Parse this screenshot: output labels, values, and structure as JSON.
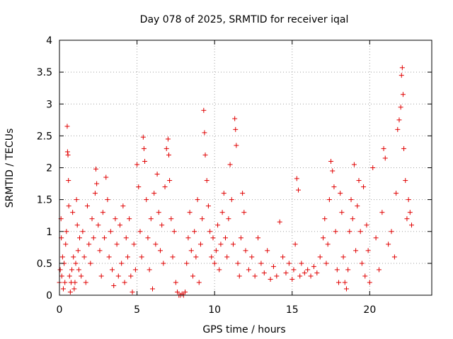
{
  "chart_data": {
    "type": "scatter",
    "title": "Day 078 of 2025, SRMTID for receiver iqal",
    "xlabel": "GPS time / hours",
    "ylabel": "SRMTID / TECUs",
    "xlim": [
      0,
      24
    ],
    "ylim": [
      0,
      4
    ],
    "xticks": [
      "0",
      "5",
      "10",
      "15",
      "20"
    ],
    "yticks": [
      "0",
      "0.5",
      "1",
      "1.5",
      "2",
      "2.5",
      "3",
      "3.5",
      "4"
    ],
    "grid": true,
    "marker": "+",
    "color": "#e00000",
    "series": [
      {
        "name": "SRMTID",
        "points": [
          [
            0.0,
            0.2
          ],
          [
            0.05,
            0.4
          ],
          [
            0.1,
            1.2
          ],
          [
            0.12,
            0.9
          ],
          [
            0.15,
            0.3
          ],
          [
            0.2,
            0.6
          ],
          [
            0.25,
            0.1
          ],
          [
            0.3,
            0.5
          ],
          [
            0.35,
            0.2
          ],
          [
            0.4,
            0.8
          ],
          [
            0.45,
            1.0
          ],
          [
            0.5,
            2.65
          ],
          [
            0.52,
            2.25
          ],
          [
            0.55,
            2.2
          ],
          [
            0.58,
            1.8
          ],
          [
            0.6,
            1.4
          ],
          [
            0.65,
            0.3
          ],
          [
            0.7,
            0.05
          ],
          [
            0.75,
            0.2
          ],
          [
            0.8,
            0.4
          ],
          [
            0.85,
            1.3
          ],
          [
            0.9,
            0.6
          ],
          [
            0.95,
            0.1
          ],
          [
            1.0,
            0.2
          ],
          [
            1.05,
            0.5
          ],
          [
            1.1,
            1.5
          ],
          [
            1.15,
            1.1
          ],
          [
            1.2,
            0.7
          ],
          [
            1.25,
            0.4
          ],
          [
            1.3,
            0.9
          ],
          [
            1.4,
            0.3
          ],
          [
            1.5,
            1.0
          ],
          [
            1.6,
            0.6
          ],
          [
            1.7,
            0.2
          ],
          [
            1.8,
            1.4
          ],
          [
            1.9,
            0.8
          ],
          [
            2.0,
            0.5
          ],
          [
            2.1,
            1.2
          ],
          [
            2.2,
            0.9
          ],
          [
            2.3,
            1.6
          ],
          [
            2.35,
            1.98
          ],
          [
            2.4,
            1.75
          ],
          [
            2.5,
            1.1
          ],
          [
            2.6,
            0.7
          ],
          [
            2.7,
            0.3
          ],
          [
            2.8,
            1.3
          ],
          [
            2.9,
            0.9
          ],
          [
            3.0,
            1.85
          ],
          [
            3.1,
            1.5
          ],
          [
            3.2,
            0.6
          ],
          [
            3.3,
            1.0
          ],
          [
            3.4,
            0.4
          ],
          [
            3.5,
            0.15
          ],
          [
            3.6,
            1.2
          ],
          [
            3.7,
            0.8
          ],
          [
            3.8,
            0.3
          ],
          [
            3.9,
            1.1
          ],
          [
            4.0,
            0.5
          ],
          [
            4.1,
            1.4
          ],
          [
            4.2,
            0.2
          ],
          [
            4.3,
            0.9
          ],
          [
            4.4,
            0.6
          ],
          [
            4.5,
            1.2
          ],
          [
            4.6,
            0.3
          ],
          [
            4.7,
            0.05
          ],
          [
            4.8,
            0.8
          ],
          [
            4.9,
            0.4
          ],
          [
            5.0,
            2.05
          ],
          [
            5.1,
            1.7
          ],
          [
            5.2,
            1.0
          ],
          [
            5.3,
            0.6
          ],
          [
            5.4,
            2.48
          ],
          [
            5.45,
            2.3
          ],
          [
            5.5,
            2.1
          ],
          [
            5.6,
            1.5
          ],
          [
            5.7,
            0.9
          ],
          [
            5.8,
            0.4
          ],
          [
            5.9,
            1.2
          ],
          [
            6.0,
            0.1
          ],
          [
            6.1,
            1.6
          ],
          [
            6.2,
            0.8
          ],
          [
            6.3,
            1.9
          ],
          [
            6.4,
            1.3
          ],
          [
            6.5,
            0.7
          ],
          [
            6.6,
            1.1
          ],
          [
            6.7,
            0.5
          ],
          [
            6.8,
            1.7
          ],
          [
            6.9,
            2.3
          ],
          [
            7.0,
            2.45
          ],
          [
            7.05,
            2.2
          ],
          [
            7.1,
            1.8
          ],
          [
            7.2,
            1.2
          ],
          [
            7.3,
            0.6
          ],
          [
            7.4,
            1.0
          ],
          [
            7.5,
            0.2
          ],
          [
            7.6,
            0.05
          ],
          [
            7.7,
            0.0
          ],
          [
            7.8,
            0.0
          ],
          [
            7.9,
            0.02
          ],
          [
            8.0,
            0.0
          ],
          [
            8.1,
            0.05
          ],
          [
            8.2,
            0.5
          ],
          [
            8.3,
            0.9
          ],
          [
            8.4,
            1.3
          ],
          [
            8.5,
            0.7
          ],
          [
            8.6,
            0.3
          ],
          [
            8.7,
            1.0
          ],
          [
            8.8,
            0.6
          ],
          [
            8.9,
            1.5
          ],
          [
            9.0,
            0.2
          ],
          [
            9.1,
            0.8
          ],
          [
            9.2,
            1.2
          ],
          [
            9.3,
            2.9
          ],
          [
            9.35,
            2.55
          ],
          [
            9.4,
            2.2
          ],
          [
            9.5,
            1.8
          ],
          [
            9.6,
            1.4
          ],
          [
            9.7,
            1.0
          ],
          [
            9.8,
            0.6
          ],
          [
            9.9,
            0.9
          ],
          [
            10.0,
            0.5
          ],
          [
            10.1,
            0.7
          ],
          [
            10.2,
            1.1
          ],
          [
            10.3,
            0.4
          ],
          [
            10.4,
            0.8
          ],
          [
            10.5,
            1.3
          ],
          [
            10.6,
            1.6
          ],
          [
            10.7,
            0.9
          ],
          [
            10.8,
            0.6
          ],
          [
            10.9,
            1.2
          ],
          [
            11.0,
            2.05
          ],
          [
            11.1,
            1.5
          ],
          [
            11.2,
            0.8
          ],
          [
            11.3,
            2.77
          ],
          [
            11.35,
            2.6
          ],
          [
            11.4,
            2.35
          ],
          [
            11.5,
            0.5
          ],
          [
            11.6,
            0.3
          ],
          [
            11.7,
            0.9
          ],
          [
            11.8,
            1.6
          ],
          [
            11.9,
            1.3
          ],
          [
            12.0,
            0.7
          ],
          [
            12.2,
            0.4
          ],
          [
            12.4,
            0.6
          ],
          [
            12.6,
            0.3
          ],
          [
            12.8,
            0.9
          ],
          [
            13.0,
            0.5
          ],
          [
            13.2,
            0.35
          ],
          [
            13.4,
            0.7
          ],
          [
            13.6,
            0.25
          ],
          [
            13.8,
            0.45
          ],
          [
            14.0,
            0.3
          ],
          [
            14.2,
            1.15
          ],
          [
            14.4,
            0.6
          ],
          [
            14.6,
            0.35
          ],
          [
            14.8,
            0.5
          ],
          [
            15.0,
            0.25
          ],
          [
            15.1,
            0.4
          ],
          [
            15.2,
            0.8
          ],
          [
            15.3,
            1.83
          ],
          [
            15.4,
            1.65
          ],
          [
            15.5,
            0.3
          ],
          [
            15.6,
            0.5
          ],
          [
            15.8,
            0.35
          ],
          [
            16.0,
            0.4
          ],
          [
            16.2,
            0.3
          ],
          [
            16.4,
            0.45
          ],
          [
            16.6,
            0.35
          ],
          [
            16.8,
            0.6
          ],
          [
            17.0,
            0.9
          ],
          [
            17.1,
            1.2
          ],
          [
            17.2,
            0.5
          ],
          [
            17.3,
            0.8
          ],
          [
            17.4,
            1.5
          ],
          [
            17.5,
            2.1
          ],
          [
            17.6,
            1.95
          ],
          [
            17.7,
            1.7
          ],
          [
            17.8,
            1.0
          ],
          [
            17.9,
            0.4
          ],
          [
            18.0,
            0.2
          ],
          [
            18.1,
            1.6
          ],
          [
            18.2,
            1.3
          ],
          [
            18.3,
            0.6
          ],
          [
            18.4,
            0.2
          ],
          [
            18.5,
            0.1
          ],
          [
            18.6,
            0.4
          ],
          [
            18.7,
            1.0
          ],
          [
            18.8,
            1.5
          ],
          [
            18.9,
            1.2
          ],
          [
            19.0,
            2.05
          ],
          [
            19.1,
            0.7
          ],
          [
            19.2,
            1.4
          ],
          [
            19.3,
            1.8
          ],
          [
            19.4,
            1.0
          ],
          [
            19.5,
            0.5
          ],
          [
            19.6,
            1.7
          ],
          [
            19.7,
            0.3
          ],
          [
            19.8,
            1.1
          ],
          [
            19.9,
            0.7
          ],
          [
            20.0,
            0.2
          ],
          [
            20.2,
            2.0
          ],
          [
            20.4,
            0.9
          ],
          [
            20.6,
            0.4
          ],
          [
            20.8,
            1.3
          ],
          [
            20.9,
            2.3
          ],
          [
            21.0,
            2.15
          ],
          [
            21.2,
            0.8
          ],
          [
            21.4,
            1.0
          ],
          [
            21.6,
            0.6
          ],
          [
            21.7,
            1.6
          ],
          [
            21.8,
            2.6
          ],
          [
            21.9,
            2.75
          ],
          [
            22.0,
            2.95
          ],
          [
            22.05,
            3.45
          ],
          [
            22.1,
            3.57
          ],
          [
            22.15,
            3.15
          ],
          [
            22.2,
            2.3
          ],
          [
            22.3,
            1.8
          ],
          [
            22.4,
            1.2
          ],
          [
            22.5,
            1.5
          ],
          [
            22.6,
            1.3
          ],
          [
            22.7,
            1.1
          ]
        ]
      }
    ]
  }
}
